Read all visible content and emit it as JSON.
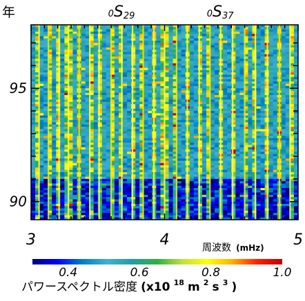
{
  "chart_data": {
    "type": "heatmap",
    "x_range": [
      3,
      5
    ],
    "x_tick_labels": [
      "3",
      "4",
      "5"
    ],
    "x_major_ticks": [
      3,
      4,
      5
    ],
    "x_minor_step": 0.1,
    "y_range": [
      89.2,
      97.8
    ],
    "y_tick_labels": [
      "90",
      "95"
    ],
    "y_major_ticks": [
      90,
      95
    ],
    "y_minor_step": 1,
    "corner_label": "年",
    "xlabel_main": "周波数",
    "xlabel_unit": "(mHz)",
    "mode_labels": [
      {
        "prefix": "0",
        "letter": "S",
        "sub": "29",
        "x": 3.68
      },
      {
        "prefix": "0",
        "letter": "S",
        "sub": "37",
        "x": 4.42
      }
    ],
    "mode_frequencies_mHz": [
      3.06,
      3.13,
      3.21,
      3.28,
      3.36,
      3.44,
      3.51,
      3.6,
      3.68,
      3.76,
      3.84,
      3.92,
      4.0,
      4.09,
      4.17,
      4.26,
      4.34,
      4.42,
      4.51,
      4.6,
      4.68,
      4.77,
      4.86,
      4.94
    ],
    "colorbar": {
      "range": [
        0.3,
        1.0
      ],
      "tick_values": [
        0.4,
        0.6,
        0.8,
        1.0
      ],
      "tick_labels": [
        "0.4",
        "0.6",
        "0.8",
        "1.0"
      ],
      "title_main": "パワースペクトル密度",
      "title_unit_open": "(x10",
      "title_unit_exp1": "18",
      "title_unit_mid": " m",
      "title_unit_exp2": "2",
      "title_unit_s": "s",
      "title_unit_exp3": "3",
      "title_unit_close": " )"
    },
    "background_level": 0.5,
    "low_power_years": [
      89.2,
      91.0
    ]
  },
  "colors": {
    "colormap": [
      "#00007f",
      "#0000ff",
      "#0080c0",
      "#40b0d0",
      "#20a0a0",
      "#30b040",
      "#c0e040",
      "#ffff00",
      "#ffb000",
      "#ff2000",
      "#c00000"
    ]
  }
}
